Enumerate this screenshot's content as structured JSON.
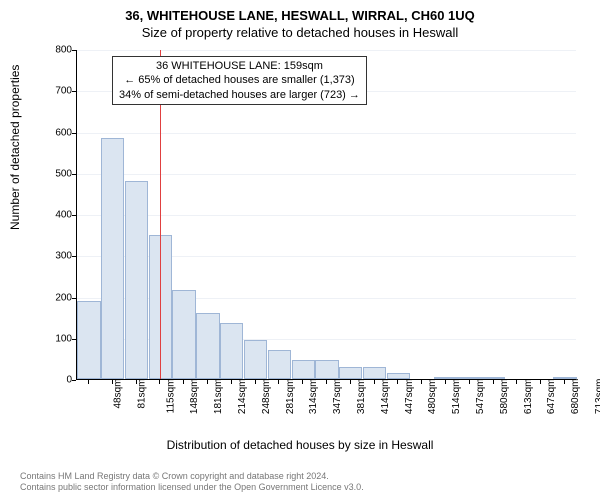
{
  "title": "36, WHITEHOUSE LANE, HESWALL, WIRRAL, CH60 1UQ",
  "subtitle": "Size of property relative to detached houses in Heswall",
  "chart": {
    "type": "histogram",
    "ylabel": "Number of detached properties",
    "xlabel": "Distribution of detached houses by size in Heswall",
    "ylim": [
      0,
      800
    ],
    "ytick_step": 100,
    "bar_color": "#dbe5f1",
    "bar_border": "#9fb6d6",
    "grid_color": "#eef1f6",
    "background_color": "#ffffff",
    "refline_color": "#e04040",
    "x_categories": [
      "48sqm",
      "81sqm",
      "115sqm",
      "148sqm",
      "181sqm",
      "214sqm",
      "248sqm",
      "281sqm",
      "314sqm",
      "347sqm",
      "381sqm",
      "414sqm",
      "447sqm",
      "480sqm",
      "514sqm",
      "547sqm",
      "580sqm",
      "613sqm",
      "647sqm",
      "680sqm",
      "713sqm"
    ],
    "values": [
      190,
      585,
      480,
      350,
      215,
      160,
      135,
      95,
      70,
      45,
      45,
      30,
      30,
      15,
      0,
      3,
      3,
      3,
      0,
      0,
      3
    ],
    "refline_after_category_index": 3,
    "annotation": {
      "lines": [
        "36 WHITEHOUSE LANE: 159sqm",
        "← 65% of detached houses are smaller (1,373)",
        "34% of semi-detached houses are larger (723) →"
      ]
    }
  },
  "footer": {
    "line1": "Contains HM Land Registry data © Crown copyright and database right 2024.",
    "line2": "Contains public sector information licensed under the Open Government Licence v3.0."
  }
}
